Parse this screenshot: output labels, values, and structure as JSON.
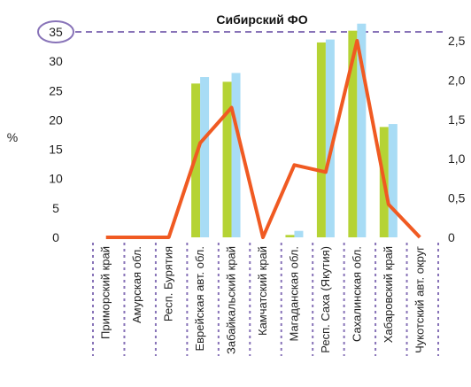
{
  "chart_data": {
    "type": "bar",
    "title": "Сибирский ФО",
    "ylabel": "%",
    "categories": [
      "Приморский край",
      "Амурская обл.",
      "Респ. Бурятия",
      "Еврейская авт. обл.",
      "Забайкальский край",
      "Камчатский край",
      "Магаданская обл.",
      "Респ. Саха (Якутия)",
      "Сахалинская обл.",
      "Хабаровский край",
      "Чукотский авт. округ"
    ],
    "left_axis": {
      "ylim": [
        0,
        35
      ],
      "ticks": [
        "0",
        "5",
        "10",
        "15",
        "20",
        "25",
        "30",
        "35"
      ],
      "highlighted_tick": "35"
    },
    "right_axis": {
      "ylim": [
        0,
        2.6
      ],
      "ticks": [
        "0",
        "0,5",
        "1,0",
        "1,5",
        "2,0",
        "2,5"
      ]
    },
    "series": [
      {
        "axis": "left",
        "kind": "bar",
        "color": "#b5d334",
        "values": [
          0,
          0,
          0,
          26.2,
          26.5,
          0,
          0.4,
          33.2,
          35.2,
          18.8,
          0
        ]
      },
      {
        "axis": "left",
        "kind": "bar",
        "color": "#a8dcf5",
        "values": [
          0,
          0,
          0,
          27.3,
          28.0,
          0,
          1.1,
          33.7,
          36.4,
          19.3,
          0
        ]
      },
      {
        "axis": "right",
        "kind": "line",
        "color": "#f05a22",
        "values": [
          0,
          0,
          0,
          1.2,
          1.65,
          0,
          0.92,
          0.83,
          2.5,
          0.42,
          0
        ]
      }
    ],
    "grid": false,
    "legend": "none",
    "colors": {
      "reference_line": "#8873b8",
      "separator": "#8873b8"
    }
  }
}
